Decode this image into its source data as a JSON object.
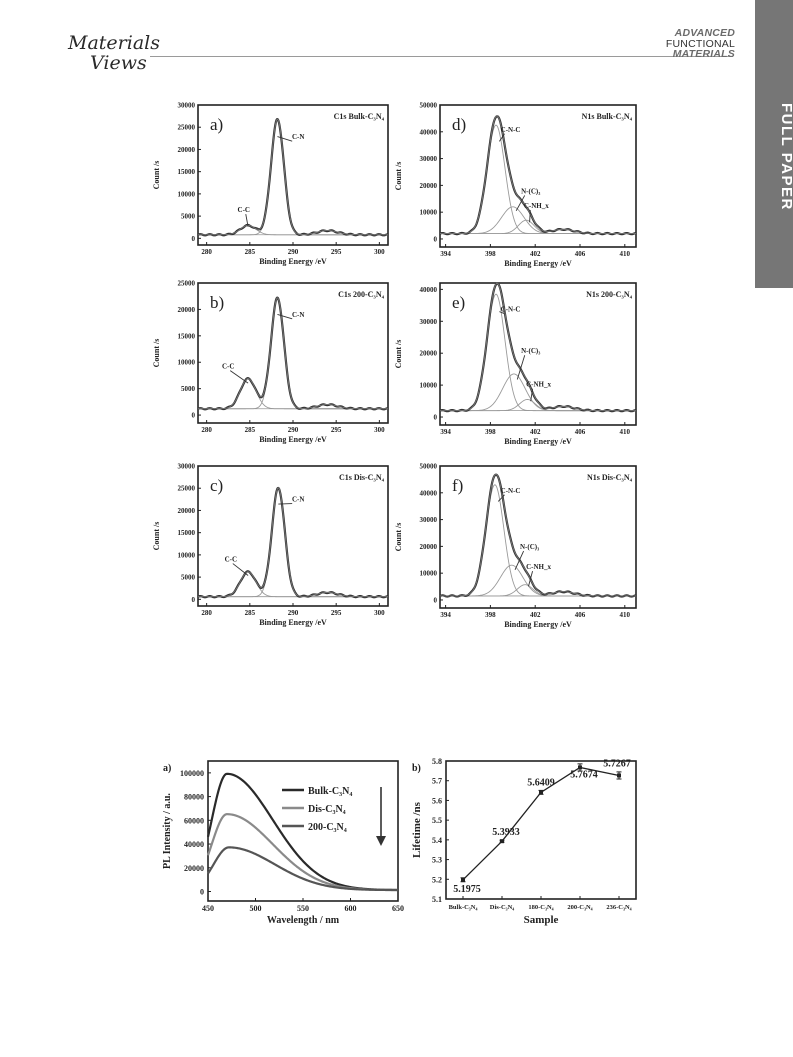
{
  "header": {
    "logo_line1": "Materials",
    "logo_line2": "Views",
    "journal_line1": "ADVANCED",
    "journal_line2": "FUNCTIONAL",
    "journal_line3": "MATERIALS",
    "section_tab": "FULL PAPER"
  },
  "chart_data": [
    {
      "id": "a",
      "type": "line",
      "panel_label": "a)",
      "title": "C1s  Bulk-C₃N₄",
      "xlabel": "Binding Energy /eV",
      "ylabel": "Count /s",
      "xlim": [
        279,
        301
      ],
      "ylim": [
        -1500,
        30000
      ],
      "xticks": [
        280,
        285,
        290,
        295,
        300
      ],
      "yticks": [
        0,
        5000,
        10000,
        15000,
        20000,
        25000,
        30000
      ],
      "baseline": 800,
      "peaks": [
        {
          "label": "C-C",
          "center": 284.8,
          "height": 2100,
          "width": 0.9
        },
        {
          "label": "C-N",
          "center": 288.2,
          "height": 26000,
          "width": 0.75
        }
      ],
      "annotations": [
        {
          "text": "C-C",
          "x": 284.3,
          "y": 5900
        },
        {
          "text": "C-N",
          "x": 290.6,
          "y": 22300
        }
      ]
    },
    {
      "id": "b",
      "type": "line",
      "panel_label": "b)",
      "title": "C1s  200-C₃N₄",
      "xlabel": "Binding Energy /eV",
      "ylabel": "Count /s",
      "xlim": [
        279,
        301
      ],
      "ylim": [
        -1500,
        25000
      ],
      "xticks": [
        280,
        285,
        290,
        295,
        300
      ],
      "yticks": [
        0,
        5000,
        10000,
        15000,
        20000,
        25000
      ],
      "baseline": 1200,
      "peaks": [
        {
          "label": "C-C",
          "center": 284.8,
          "height": 5700,
          "width": 0.9
        },
        {
          "label": "C-N",
          "center": 288.2,
          "height": 21000,
          "width": 0.75
        }
      ],
      "annotations": [
        {
          "text": "C-C",
          "x": 282.5,
          "y": 8800
        },
        {
          "text": "C-N",
          "x": 290.6,
          "y": 18600
        }
      ]
    },
    {
      "id": "c",
      "type": "line",
      "panel_label": "c)",
      "title": "C1s Dis-C₃N₄",
      "xlabel": "Binding Energy /eV",
      "ylabel": "Count /s",
      "xlim": [
        279,
        301
      ],
      "ylim": [
        -1500,
        30000
      ],
      "xticks": [
        280,
        285,
        290,
        295,
        300
      ],
      "yticks": [
        0,
        5000,
        10000,
        15000,
        20000,
        25000,
        30000
      ],
      "baseline": 600,
      "peaks": [
        {
          "label": "C-C",
          "center": 284.8,
          "height": 5600,
          "width": 0.9
        },
        {
          "label": "C-N",
          "center": 288.3,
          "height": 24500,
          "width": 0.75
        }
      ],
      "annotations": [
        {
          "text": "C-C",
          "x": 282.8,
          "y": 8500
        },
        {
          "text": "C-N",
          "x": 290.6,
          "y": 22000
        }
      ]
    },
    {
      "id": "d",
      "type": "line",
      "panel_label": "d)",
      "title": "N1s  Bulk-C₃N₄",
      "xlabel": "Binding Energy /eV",
      "ylabel": "Count /s",
      "xlim": [
        393.5,
        411
      ],
      "ylim": [
        -3000,
        50000
      ],
      "xticks": [
        394,
        398,
        402,
        406,
        410
      ],
      "yticks": [
        0,
        10000,
        20000,
        30000,
        40000,
        50000
      ],
      "baseline": 2000,
      "peaks": [
        {
          "label": "C-N-C",
          "center": 398.5,
          "height": 40500,
          "width": 0.8
        },
        {
          "label": "N-(C)₃",
          "center": 400.0,
          "height": 10000,
          "width": 1.0
        },
        {
          "label": "C-NH_x",
          "center": 401.2,
          "height": 5000,
          "width": 0.7
        }
      ],
      "annotations": [
        {
          "text": "C-N-C",
          "x": 399.8,
          "y": 40000
        },
        {
          "text": "N-(C)₃",
          "x": 401.6,
          "y": 17000
        },
        {
          "text": "C-NH_x",
          "x": 402.1,
          "y": 11500
        }
      ]
    },
    {
      "id": "e",
      "type": "line",
      "panel_label": "e)",
      "title": "N1s  200-C₃N₄",
      "xlabel": "Binding Energy /eV",
      "ylabel": "Count /s",
      "xlim": [
        393.5,
        411
      ],
      "ylim": [
        -2500,
        42000
      ],
      "xticks": [
        394,
        398,
        402,
        406,
        410
      ],
      "yticks": [
        0,
        10000,
        20000,
        30000,
        40000
      ],
      "baseline": 2000,
      "peaks": [
        {
          "label": "C-N-C",
          "center": 398.5,
          "height": 36500,
          "width": 0.8
        },
        {
          "label": "N-(C)₃",
          "center": 400.1,
          "height": 11500,
          "width": 1.0
        },
        {
          "label": "C-NH_x",
          "center": 401.3,
          "height": 3500,
          "width": 0.7
        }
      ],
      "annotations": [
        {
          "text": "C-N-C",
          "x": 399.8,
          "y": 33000
        },
        {
          "text": "N-(C)₃",
          "x": 401.6,
          "y": 20000
        },
        {
          "text": "C-NH_x",
          "x": 402.3,
          "y": 9500
        }
      ]
    },
    {
      "id": "f",
      "type": "line",
      "panel_label": "f)",
      "title": "N1s  Dis-C₃N₄",
      "xlabel": "Binding Energy /eV",
      "ylabel": "Count /s",
      "xlim": [
        393.5,
        411
      ],
      "ylim": [
        -3000,
        50000
      ],
      "xticks": [
        394,
        398,
        402,
        406,
        410
      ],
      "yticks": [
        0,
        10000,
        20000,
        30000,
        40000,
        50000
      ],
      "baseline": 1500,
      "peaks": [
        {
          "label": "C-N-C",
          "center": 398.4,
          "height": 41500,
          "width": 0.8
        },
        {
          "label": "N-(C)₃",
          "center": 399.9,
          "height": 11500,
          "width": 1.0
        },
        {
          "label": "C-NH_x",
          "center": 401.1,
          "height": 4200,
          "width": 0.7
        }
      ],
      "annotations": [
        {
          "text": "C-N-C",
          "x": 399.8,
          "y": 40000
        },
        {
          "text": "N-(C)₃",
          "x": 401.5,
          "y": 19000
        },
        {
          "text": "C-NH_x",
          "x": 402.3,
          "y": 11500
        }
      ]
    },
    {
      "id": "pl",
      "type": "line",
      "panel_label": "a)",
      "xlabel": "Wavelength / nm",
      "ylabel": "PL Intensity / a.u.",
      "xlim": [
        450,
        650
      ],
      "ylim": [
        -8000,
        110000
      ],
      "xticks": [
        450,
        500,
        550,
        600,
        650
      ],
      "yticks": [
        0,
        20000,
        40000,
        60000,
        80000,
        100000
      ],
      "series": [
        {
          "name": "Bulk-C₃N₄",
          "peak_nm": 470,
          "peak_value": 98000,
          "color": "#2a2a2a"
        },
        {
          "name": "Dis-C₃N₄",
          "peak_nm": 470,
          "peak_value": 64000,
          "color": "#8a8a8a"
        },
        {
          "name": "200-C₃N₄",
          "peak_nm": 472,
          "peak_value": 36000,
          "color": "#555555"
        }
      ],
      "legend": "top-right"
    },
    {
      "id": "lifetime",
      "type": "line",
      "panel_label": "b)",
      "xlabel": "Sample",
      "ylabel": "Lifetime /ns",
      "ylim": [
        5.1,
        5.8
      ],
      "yticks": [
        5.1,
        5.2,
        5.3,
        5.4,
        5.5,
        5.6,
        5.7,
        5.8
      ],
      "categories": [
        "Bulk-C₃N₄",
        "Dis-C₃N₄",
        "180-C₃N₄",
        "200-C₃N₄",
        "236-C₃N₄"
      ],
      "values": [
        5.1975,
        5.3933,
        5.6409,
        5.7674,
        5.7267
      ],
      "data_labels": [
        "5.1975",
        "5.3933",
        "5.6409",
        "5.7674",
        "5.7267"
      ],
      "errors": [
        0.01,
        0.005,
        0.01,
        0.018,
        0.018
      ]
    }
  ]
}
